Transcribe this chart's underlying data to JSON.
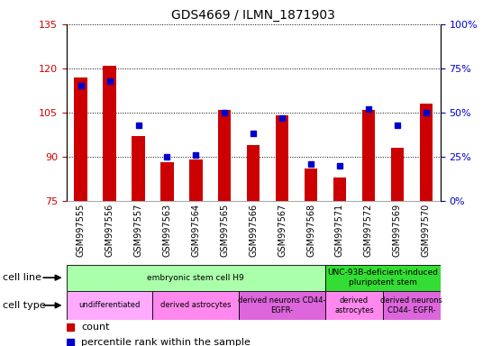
{
  "title": "GDS4669 / ILMN_1871903",
  "samples": [
    "GSM997555",
    "GSM997556",
    "GSM997557",
    "GSM997563",
    "GSM997564",
    "GSM997565",
    "GSM997566",
    "GSM997567",
    "GSM997568",
    "GSM997571",
    "GSM997572",
    "GSM997569",
    "GSM997570"
  ],
  "counts": [
    117,
    121,
    97,
    88,
    89,
    106,
    94,
    104,
    86,
    83,
    106,
    93,
    108
  ],
  "percentiles": [
    65,
    68,
    43,
    25,
    26,
    50,
    38,
    47,
    21,
    20,
    52,
    43,
    50
  ],
  "ylim_left": [
    75,
    135
  ],
  "ylim_right": [
    0,
    100
  ],
  "yticks_left": [
    75,
    90,
    105,
    120,
    135
  ],
  "yticks_right": [
    0,
    25,
    50,
    75,
    100
  ],
  "count_color": "#cc0000",
  "percentile_color": "#0000cc",
  "bar_base": 75,
  "cell_line_groups": [
    {
      "label": "embryonic stem cell H9",
      "start": 0,
      "end": 9,
      "color": "#aaffaa"
    },
    {
      "label": "UNC-93B-deficient-induced\npluripotent stem",
      "start": 9,
      "end": 13,
      "color": "#33dd33"
    }
  ],
  "cell_type_groups": [
    {
      "label": "undifferentiated",
      "start": 0,
      "end": 3
    },
    {
      "label": "derived astrocytes",
      "start": 3,
      "end": 6
    },
    {
      "label": "derived neurons CD44-\nEGFR-",
      "start": 6,
      "end": 9
    },
    {
      "label": "derived\nastrocytes",
      "start": 9,
      "end": 11
    },
    {
      "label": "derived neurons\nCD44- EGFR-",
      "start": 11,
      "end": 13
    }
  ],
  "cell_type_colors": [
    "#ffaaff",
    "#ff88ee",
    "#dd66dd",
    "#ff88ee",
    "#dd66dd"
  ],
  "background_color": "#ffffff",
  "plot_bg": "#e8e8e8",
  "xtick_bg": "#cccccc"
}
